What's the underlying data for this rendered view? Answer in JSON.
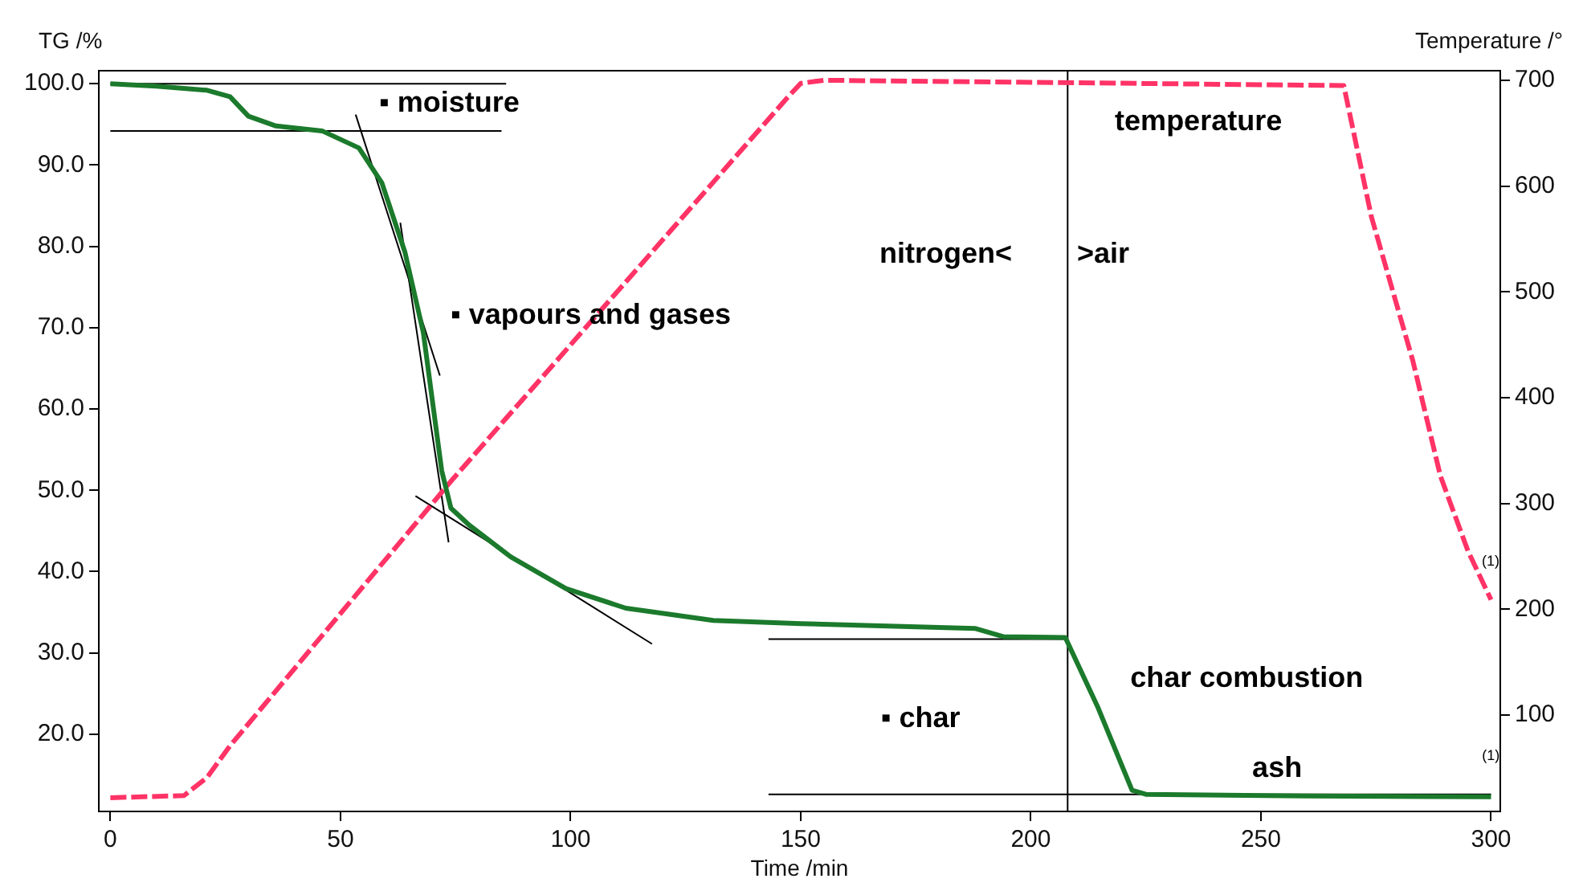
{
  "chart_data": {
    "type": "line",
    "xlabel": "Time /min",
    "ylabel": "TG /%",
    "y2label": "Temperature /°",
    "xlim": [
      -2.5,
      302
    ],
    "xticks": [
      0,
      50,
      100,
      150,
      200,
      250,
      300
    ],
    "ylim": [
      10.5,
      101.6
    ],
    "yticks": [
      {
        "value": 20,
        "label": "20.0"
      },
      {
        "value": 30,
        "label": "30.0"
      },
      {
        "value": 40,
        "label": "40.0"
      },
      {
        "value": 50,
        "label": "50.0"
      },
      {
        "value": 60,
        "label": "60.0"
      },
      {
        "value": 70,
        "label": "70.0"
      },
      {
        "value": 80,
        "label": "80.0"
      },
      {
        "value": 90,
        "label": "90.0"
      },
      {
        "value": 100,
        "label": "100.0"
      }
    ],
    "y2lim": [
      9,
      709
    ],
    "y2ticks": [
      100,
      200,
      300,
      400,
      500,
      600,
      700
    ],
    "grid": false,
    "legend": false,
    "series": [
      {
        "color": "#1b7a2c",
        "x": [
          0,
          10,
          21,
          26,
          30,
          36,
          46,
          54,
          59,
          64,
          68,
          70,
          72,
          74,
          78,
          87,
          99,
          112,
          131,
          150,
          169,
          188,
          194,
          207.5,
          214.5,
          222,
          225,
          260,
          300
        ],
        "values": [
          100,
          99.7,
          99.2,
          98.4,
          96,
          94.8,
          94.2,
          92.1,
          87.8,
          79.3,
          69.4,
          60.9,
          52.4,
          47.8,
          45.7,
          41.8,
          37.9,
          35.5,
          34,
          33.6,
          33.3,
          33,
          32,
          31.9,
          23.4,
          13.1,
          12.6,
          12.4,
          12.3
        ]
      },
      {
        "color": "#ff3366",
        "axis": "y2",
        "line_style": "dashed",
        "x": [
          0,
          16,
          21,
          26,
          74,
          147,
          150,
          155,
          200,
          268,
          274,
          283,
          289,
          295,
          300
        ],
        "values": [
          22,
          24,
          41,
          71,
          321,
          683,
          697,
          700,
          698,
          695,
          571,
          435,
          326,
          255,
          209
        ]
      },
      {
        "color": "#000000",
        "x": [
          0,
          86
        ],
        "values": [
          100,
          100
        ]
      },
      {
        "color": "#000000",
        "x": [
          0,
          85
        ],
        "values": [
          94.2,
          94.2
        ]
      },
      {
        "color": "#000000",
        "x": [
          53.3,
          71.6
        ],
        "values": [
          96.2,
          64.1
        ]
      },
      {
        "color": "#000000",
        "x": [
          63,
          73.5
        ],
        "values": [
          82.9,
          43.6
        ]
      },
      {
        "color": "#000000",
        "x": [
          66.3,
          117.7
        ],
        "values": [
          49.3,
          31.1
        ]
      },
      {
        "color": "#000000",
        "x": [
          143,
          207.5
        ],
        "values": [
          31.7,
          31.7
        ]
      },
      {
        "color": "#000000",
        "x": [
          143,
          300
        ],
        "values": [
          12.6,
          12.6
        ]
      }
    ],
    "ref_lines": [
      {
        "axis": "x",
        "value": 208,
        "color": "#000000"
      }
    ],
    "annotations": [
      "▪ moisture",
      "▪ vapours and gases",
      "nitrogen<",
      ">air",
      "temperature",
      "▪ char",
      "char combustion",
      "ash",
      {
        "text": "(1)",
        "x": 298,
        "y": 41.2
      },
      "(1)"
    ]
  }
}
